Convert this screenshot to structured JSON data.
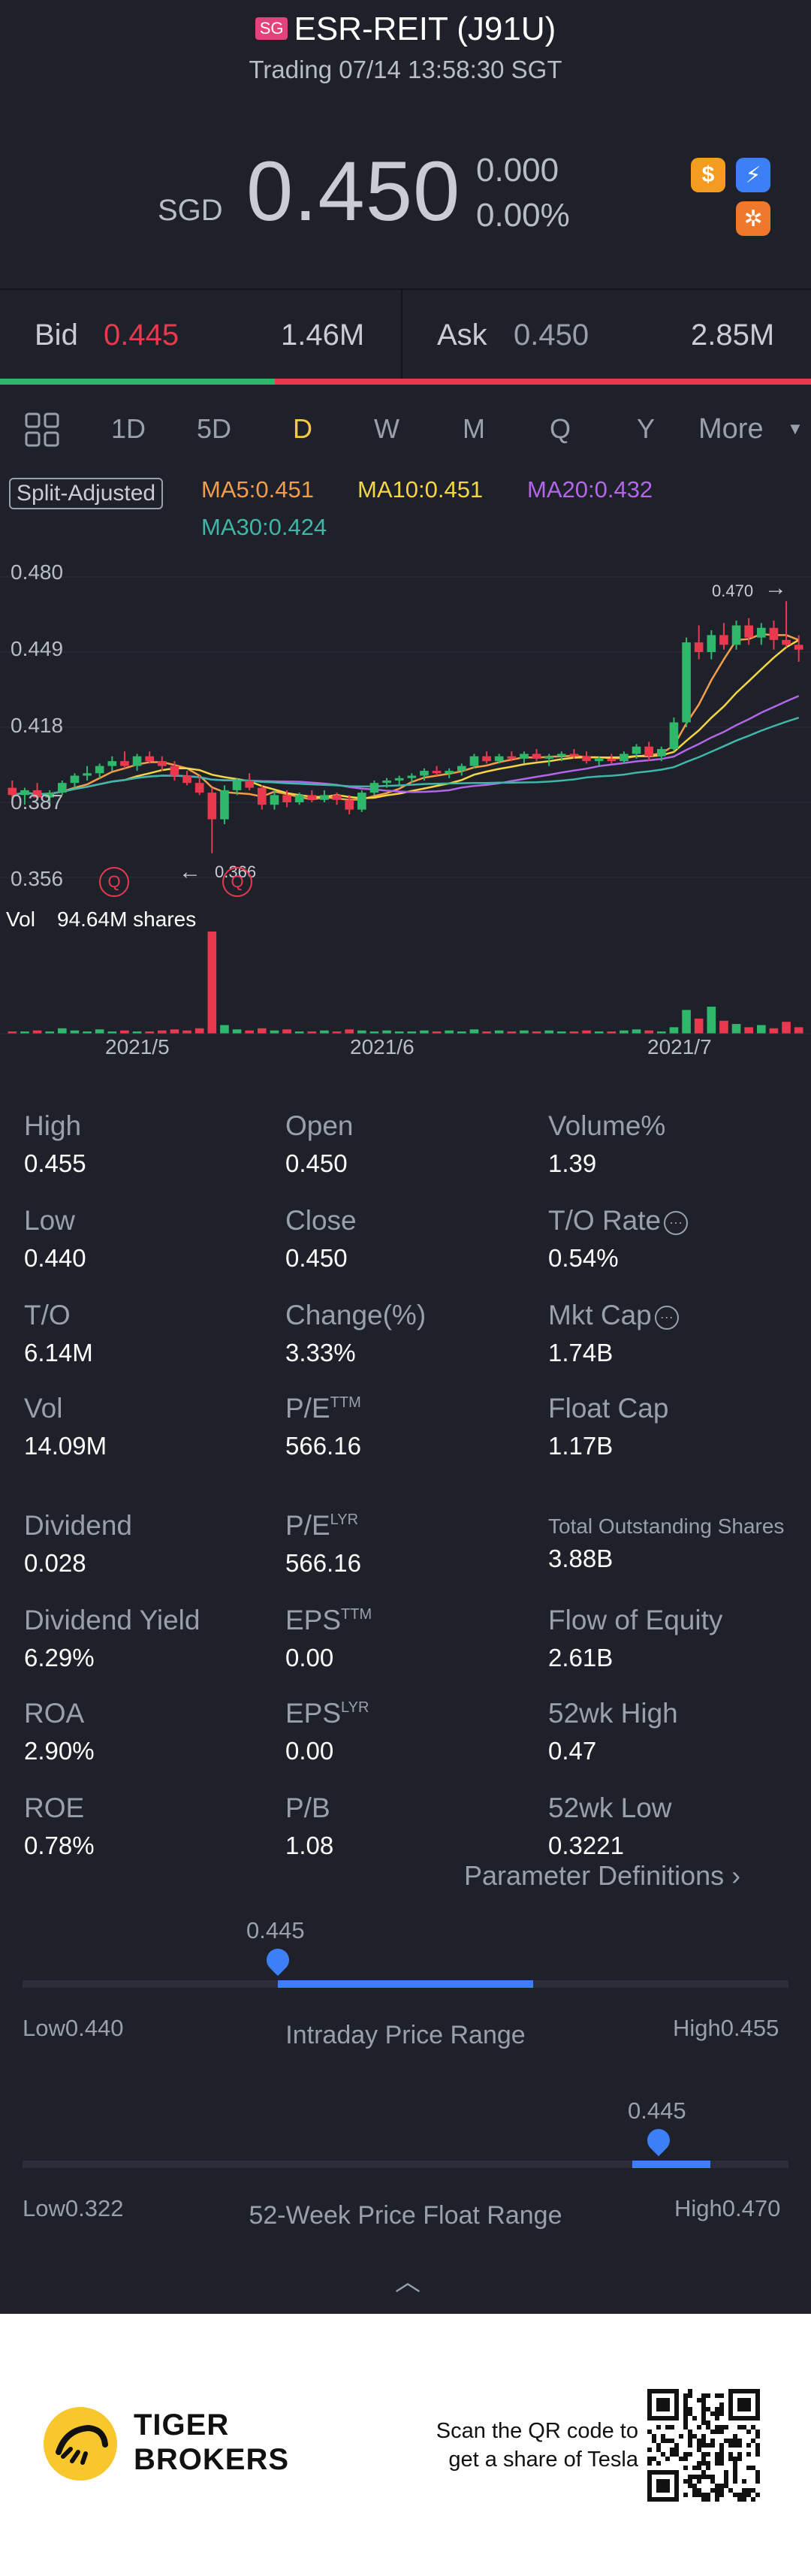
{
  "header": {
    "exchange_badge": "SG",
    "title": "ESR-REIT (J91U)",
    "status": "Trading 07/14 13:58:30 SGT",
    "currency": "SGD",
    "price": "0.450",
    "change": "0.000",
    "change_pct": "0.00%"
  },
  "icons": [
    "dollar-icon",
    "lightning-icon",
    "options-icon"
  ],
  "bid_ask": {
    "bid_label": "Bid",
    "bid_price": "0.445",
    "bid_size": "1.46M",
    "ask_label": "Ask",
    "ask_price": "0.450",
    "ask_size": "2.85M",
    "bid_ratio": 0.34
  },
  "tabs": [
    "1D",
    "5D",
    "D",
    "W",
    "M",
    "Q",
    "Y",
    "More"
  ],
  "active_tab": "D",
  "chart": {
    "split_label": "Split-Adjusted",
    "ma": [
      {
        "label": "MA5:0.451",
        "color": "#f39c4a"
      },
      {
        "label": "MA10:0.451",
        "color": "#f5d542"
      },
      {
        "label": "MA20:0.432",
        "color": "#b366e8"
      },
      {
        "label": "MA30:0.424",
        "color": "#3fb6a8"
      }
    ],
    "y_labels": [
      "0.480",
      "0.449",
      "0.418",
      "0.387",
      "0.356"
    ],
    "high_marker": "0.470",
    "low_marker": "0.366",
    "event_marker": "Q",
    "vol_label": "Vol",
    "vol_value": "94.64M shares",
    "x_labels": [
      "2021/5",
      "2021/6",
      "2021/7"
    ]
  },
  "chart_data": {
    "type": "candlestick",
    "title": "",
    "ylim": [
      0.356,
      0.48
    ],
    "x_ticks": [
      "2021/5",
      "2021/6",
      "2021/7"
    ],
    "candles": [
      [
        0.393,
        0.396,
        0.388,
        0.39
      ],
      [
        0.39,
        0.393,
        0.386,
        0.392
      ],
      [
        0.392,
        0.395,
        0.389,
        0.389
      ],
      [
        0.389,
        0.392,
        0.386,
        0.391
      ],
      [
        0.391,
        0.396,
        0.39,
        0.395
      ],
      [
        0.395,
        0.399,
        0.393,
        0.398
      ],
      [
        0.398,
        0.402,
        0.396,
        0.399
      ],
      [
        0.399,
        0.403,
        0.397,
        0.402
      ],
      [
        0.402,
        0.406,
        0.4,
        0.404
      ],
      [
        0.404,
        0.408,
        0.401,
        0.402
      ],
      [
        0.402,
        0.407,
        0.4,
        0.406
      ],
      [
        0.406,
        0.408,
        0.403,
        0.404
      ],
      [
        0.404,
        0.406,
        0.4,
        0.402
      ],
      [
        0.402,
        0.404,
        0.396,
        0.398
      ],
      [
        0.398,
        0.4,
        0.394,
        0.395
      ],
      [
        0.395,
        0.398,
        0.39,
        0.391
      ],
      [
        0.391,
        0.393,
        0.366,
        0.38
      ],
      [
        0.38,
        0.394,
        0.378,
        0.392
      ],
      [
        0.392,
        0.397,
        0.39,
        0.396
      ],
      [
        0.396,
        0.399,
        0.392,
        0.393
      ],
      [
        0.393,
        0.394,
        0.384,
        0.386
      ],
      [
        0.386,
        0.392,
        0.384,
        0.39
      ],
      [
        0.39,
        0.392,
        0.385,
        0.387
      ],
      [
        0.387,
        0.391,
        0.386,
        0.39
      ],
      [
        0.39,
        0.392,
        0.387,
        0.388
      ],
      [
        0.388,
        0.392,
        0.387,
        0.39
      ],
      [
        0.39,
        0.391,
        0.386,
        0.388
      ],
      [
        0.388,
        0.39,
        0.382,
        0.384
      ],
      [
        0.384,
        0.392,
        0.383,
        0.391
      ],
      [
        0.391,
        0.396,
        0.39,
        0.395
      ],
      [
        0.395,
        0.397,
        0.393,
        0.396
      ],
      [
        0.396,
        0.398,
        0.394,
        0.397
      ],
      [
        0.397,
        0.399,
        0.395,
        0.398
      ],
      [
        0.398,
        0.401,
        0.396,
        0.4
      ],
      [
        0.4,
        0.402,
        0.398,
        0.399
      ],
      [
        0.399,
        0.401,
        0.397,
        0.4
      ],
      [
        0.4,
        0.403,
        0.398,
        0.402
      ],
      [
        0.402,
        0.407,
        0.401,
        0.406
      ],
      [
        0.406,
        0.408,
        0.403,
        0.404
      ],
      [
        0.404,
        0.407,
        0.403,
        0.406
      ],
      [
        0.406,
        0.408,
        0.404,
        0.405
      ],
      [
        0.405,
        0.408,
        0.403,
        0.407
      ],
      [
        0.407,
        0.409,
        0.404,
        0.405
      ],
      [
        0.405,
        0.407,
        0.402,
        0.406
      ],
      [
        0.406,
        0.408,
        0.404,
        0.407
      ],
      [
        0.407,
        0.409,
        0.405,
        0.406
      ],
      [
        0.406,
        0.408,
        0.403,
        0.404
      ],
      [
        0.404,
        0.406,
        0.402,
        0.405
      ],
      [
        0.405,
        0.407,
        0.403,
        0.404
      ],
      [
        0.404,
        0.408,
        0.403,
        0.407
      ],
      [
        0.407,
        0.411,
        0.405,
        0.41
      ],
      [
        0.41,
        0.412,
        0.404,
        0.406
      ],
      [
        0.406,
        0.41,
        0.404,
        0.409
      ],
      [
        0.409,
        0.422,
        0.408,
        0.42
      ],
      [
        0.42,
        0.455,
        0.418,
        0.453
      ],
      [
        0.453,
        0.46,
        0.446,
        0.449
      ],
      [
        0.449,
        0.458,
        0.446,
        0.456
      ],
      [
        0.456,
        0.461,
        0.45,
        0.452
      ],
      [
        0.452,
        0.462,
        0.45,
        0.46
      ],
      [
        0.46,
        0.463,
        0.452,
        0.455
      ],
      [
        0.455,
        0.461,
        0.452,
        0.459
      ],
      [
        0.459,
        0.462,
        0.45,
        0.454
      ],
      [
        0.454,
        0.47,
        0.451,
        0.452
      ],
      [
        0.452,
        0.456,
        0.445,
        0.45
      ]
    ],
    "volume": [
      2,
      1,
      3,
      2,
      5,
      3,
      2,
      4,
      2,
      3,
      1,
      2,
      3,
      4,
      3,
      5,
      94.64,
      8,
      4,
      3,
      5,
      3,
      4,
      2,
      2,
      3,
      2,
      4,
      3,
      2,
      3,
      2,
      2,
      3,
      2,
      3,
      2,
      4,
      2,
      3,
      2,
      3,
      2,
      3,
      2,
      2,
      3,
      2,
      2,
      3,
      4,
      3,
      2,
      6,
      22,
      14,
      25,
      12,
      9,
      6,
      8,
      5,
      11,
      6
    ]
  },
  "stats": [
    {
      "label": "High",
      "value": "0.455"
    },
    {
      "label": "Open",
      "value": "0.450"
    },
    {
      "label": "Volume%",
      "value": "1.39"
    },
    {
      "label": "Low",
      "value": "0.440"
    },
    {
      "label": "Close",
      "value": "0.450"
    },
    {
      "label": "T/O Rate",
      "value": "0.54%"
    },
    {
      "label": "T/O",
      "value": "6.14M"
    },
    {
      "label": "Change(%)",
      "value": "3.33%"
    },
    {
      "label": "Mkt Cap",
      "value": "1.74B"
    },
    {
      "label": "Vol",
      "value": "14.09M"
    },
    {
      "label": "P/E",
      "sup": "TTM",
      "value": "566.16"
    },
    {
      "label": "Float Cap",
      "value": "1.17B"
    },
    {
      "label": "Dividend",
      "value": "0.028"
    },
    {
      "label": "P/E",
      "sup": "LYR",
      "value": "566.16"
    },
    {
      "label": "Total Outstanding Shares",
      "value": "3.88B"
    },
    {
      "label": "Dividend Yield",
      "value": "6.29%"
    },
    {
      "label": "EPS",
      "sup": "TTM",
      "value": "0.00"
    },
    {
      "label": "Flow of Equity",
      "value": "2.61B"
    },
    {
      "label": "ROA",
      "value": "2.90%"
    },
    {
      "label": "EPS",
      "sup": "LYR",
      "value": "0.00"
    },
    {
      "label": "52wk High",
      "value": "0.47"
    },
    {
      "label": "ROE",
      "value": "0.78%"
    },
    {
      "label": "P/B",
      "value": "1.08"
    },
    {
      "label": "52wk Low",
      "value": "0.3221"
    }
  ],
  "param_definitions": "Parameter Definitions",
  "intraday_range": {
    "label": "Intraday Price Range",
    "current": "0.445",
    "low_label": "Low0.440",
    "high_label": "High0.455",
    "low": 0.44,
    "high": 0.455,
    "value": 0.445,
    "fill_end_ratio": 0.7
  },
  "week52_range": {
    "label": "52-Week Price Float Range",
    "current": "0.445",
    "low_label": "Low0.322",
    "high_label": "High0.470",
    "low": 0.322,
    "high": 0.47,
    "value": 0.445,
    "fill_start_ratio": 0.85
  },
  "footer": {
    "brand_line1": "TIGER",
    "brand_line2": "BROKERS",
    "qr_line1": "Scan the QR code to",
    "qr_line2": "get a share of Tesla"
  },
  "colors": {
    "up": "#2fb76b",
    "down": "#e8394e",
    "accent": "#3d7ff5",
    "active_tab": "#f5c945"
  }
}
